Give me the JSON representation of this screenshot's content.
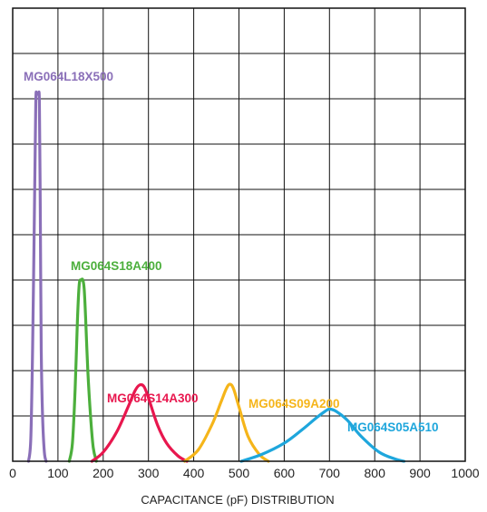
{
  "chart_data": {
    "type": "line",
    "title": "",
    "xlabel": "CAPACITANCE (pF) DISTRIBUTION",
    "ylabel": "",
    "xlim": [
      0,
      1000
    ],
    "ylim": [
      0,
      10
    ],
    "grid": true,
    "x_ticks": [
      "0",
      "100",
      "200",
      "300",
      "400",
      "500",
      "600",
      "700",
      "800",
      "900",
      "1000"
    ],
    "series": [
      {
        "name": "MG064L18X500",
        "color": "#8a6fb8",
        "x": [
          35,
          40,
          44,
          48,
          51,
          53,
          55,
          57,
          59,
          61,
          63,
          66,
          70,
          74
        ],
        "y": [
          0,
          0.5,
          2.5,
          5.5,
          7.9,
          8.1,
          8.1,
          8.1,
          7.9,
          5.5,
          2.5,
          1,
          0.2,
          0
        ]
      },
      {
        "name": "MG064S18A400",
        "color": "#4caf3c",
        "x": [
          125,
          132,
          138,
          143,
          147,
          151,
          155,
          158,
          161,
          166,
          172,
          178,
          185
        ],
        "y": [
          0,
          0.4,
          1.6,
          3.1,
          3.9,
          4.0,
          4.0,
          3.8,
          3.2,
          2.0,
          1.0,
          0.3,
          0
        ]
      },
      {
        "name": "MG064S14A300",
        "color": "#e8174e",
        "x": [
          175,
          200,
          230,
          255,
          270,
          280,
          290,
          300,
          320,
          340,
          365,
          385
        ],
        "y": [
          0,
          0.2,
          0.65,
          1.2,
          1.55,
          1.68,
          1.65,
          1.4,
          0.8,
          0.4,
          0.12,
          0
        ]
      },
      {
        "name": "MG064S09A200",
        "color": "#f5b51a",
        "x": [
          380,
          410,
          440,
          460,
          472,
          480,
          488,
          500,
          520,
          545,
          565
        ],
        "y": [
          0,
          0.25,
          0.8,
          1.3,
          1.6,
          1.7,
          1.6,
          1.2,
          0.55,
          0.15,
          0
        ]
      },
      {
        "name": "MG064S05A510",
        "color": "#1ea6dc",
        "x": [
          505,
          550,
          600,
          640,
          670,
          690,
          700,
          715,
          740,
          770,
          810,
          845,
          865
        ],
        "y": [
          0,
          0.15,
          0.4,
          0.7,
          0.95,
          1.1,
          1.15,
          1.1,
          0.9,
          0.55,
          0.2,
          0.05,
          0
        ]
      }
    ]
  }
}
